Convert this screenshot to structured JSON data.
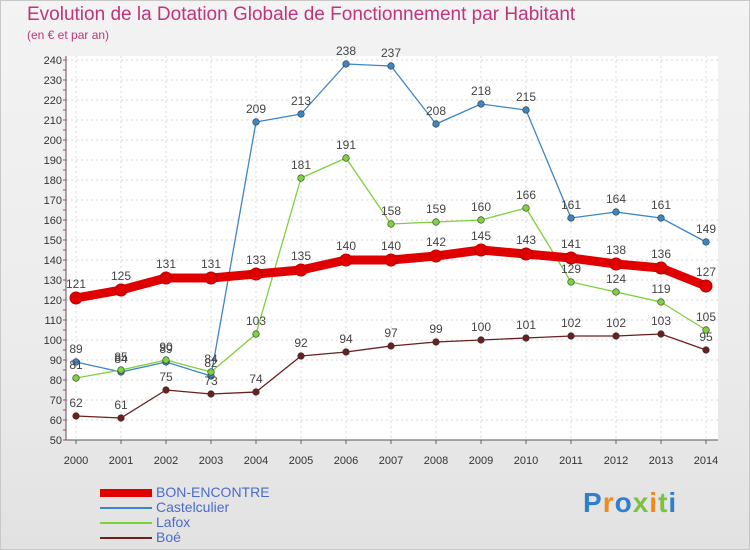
{
  "chart_data": {
    "type": "line",
    "title": "Evolution de la Dotation Globale de Fonctionnement par Habitant",
    "subtitle": "(en € et par an)",
    "xlabel": "",
    "ylabel": "",
    "ylim": [
      50,
      240
    ],
    "ytick_step": 10,
    "grid": true,
    "legend_position": "bottom-left",
    "x": [
      "2000",
      "2001",
      "2002",
      "2003",
      "2004",
      "2005",
      "2006",
      "2007",
      "2008",
      "2009",
      "2010",
      "2011",
      "2012",
      "2013",
      "2014"
    ],
    "series": [
      {
        "name": "BON-ENCONTRE",
        "color": "#e00000",
        "values": [
          121,
          125,
          131,
          131,
          133,
          135,
          140,
          140,
          142,
          145,
          143,
          141,
          138,
          136,
          127
        ]
      },
      {
        "name": "Castelculier",
        "color": "#3d86c6",
        "values": [
          89,
          84,
          89,
          82,
          209,
          213,
          238,
          237,
          208,
          218,
          215,
          161,
          164,
          161,
          149
        ]
      },
      {
        "name": "Lafox",
        "color": "#7cd13c",
        "values": [
          81,
          85,
          90,
          84,
          103,
          181,
          191,
          158,
          159,
          160,
          166,
          129,
          124,
          119,
          105
        ]
      },
      {
        "name": "Boé",
        "color": "#6b1f1f",
        "values": [
          62,
          61,
          75,
          73,
          74,
          92,
          94,
          97,
          99,
          100,
          101,
          102,
          102,
          103,
          95
        ]
      }
    ]
  },
  "logo": {
    "text": "Proxiti",
    "colors": [
      "#2f7fd0",
      "#f08a1c",
      "#2f7fd0",
      "#7cc242",
      "#f08a1c",
      "#7cc242",
      "#2f7fd0"
    ]
  }
}
